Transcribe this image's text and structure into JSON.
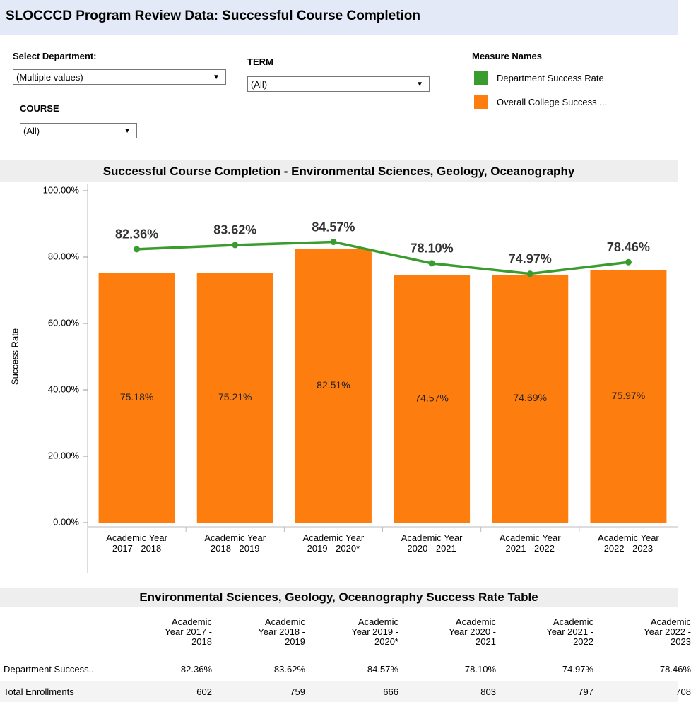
{
  "header": {
    "title": "SLOCCCD Program Review Data: Successful Course Completion"
  },
  "filters": [
    {
      "label": "Select Department:",
      "value": "(Multiple values)"
    },
    {
      "label": "COURSE",
      "value": "(All)"
    },
    {
      "label": "TERM",
      "value": "(All)"
    }
  ],
  "legend_title": "Measure Names",
  "chart_data": {
    "type": "bar_line",
    "title": "Successful Course Completion - Environmental Sciences, Geology, Oceanography",
    "y_label": "Success Rate",
    "categories": [
      "Academic Year 2017 - 2018",
      "Academic Year 2018 - 2019",
      "Academic Year 2019 - 2020*",
      "Academic Year 2020 - 2021",
      "Academic Year 2021 - 2022",
      "Academic Year 2022 - 2023"
    ],
    "series": [
      {
        "name": "Department Success Rate",
        "kind": "line",
        "color": "#3a9c2f",
        "values": [
          82.36,
          83.62,
          84.57,
          78.1,
          74.97,
          78.46
        ],
        "value_labels": [
          "82.36%",
          "83.62%",
          "84.57%",
          "78.10%",
          "74.97%",
          "78.46%"
        ]
      },
      {
        "name": "Overall College Success ...",
        "kind": "bar",
        "color": "#fd7e0f",
        "values": [
          75.18,
          75.21,
          82.51,
          74.57,
          74.69,
          75.97
        ],
        "value_labels": [
          "75.18%",
          "75.21%",
          "82.51%",
          "74.57%",
          "74.69%",
          "75.97%"
        ]
      }
    ],
    "ylim": [
      0,
      100
    ],
    "yticks": [
      {
        "value": 0,
        "label": "0.00%"
      },
      {
        "value": 20,
        "label": "20.00%"
      },
      {
        "value": 40,
        "label": "40.00%"
      },
      {
        "value": 60,
        "label": "60.00%"
      },
      {
        "value": 80,
        "label": "80.00%"
      },
      {
        "value": 100,
        "label": "100.00%"
      }
    ]
  },
  "table": {
    "title": "Environmental Sciences, Geology, Oceanography Success Rate Table",
    "columns": [
      "Academic Year 2017 - 2018",
      "Academic Year 2018 - 2019",
      "Academic Year 2019 - 2020*",
      "Academic Year 2020 - 2021",
      "Academic Year 2021 - 2022",
      "Academic Year 2022 - 2023"
    ],
    "rows": [
      [
        "Department Success..",
        "82.36%",
        "83.62%",
        "84.57%",
        "78.10%",
        "74.97%",
        "78.46%"
      ],
      [
        "Total Enrollments",
        "602",
        "759",
        "666",
        "803",
        "797",
        "708"
      ]
    ]
  }
}
